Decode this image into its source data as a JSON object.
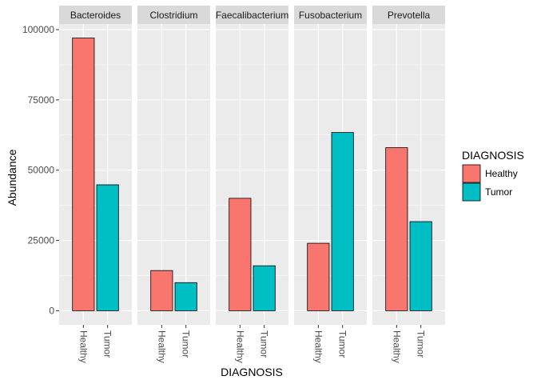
{
  "chart_data": {
    "type": "bar",
    "facets": [
      "Bacteroides",
      "Clostridium",
      "Faecalibacterium",
      "Fusobacterium",
      "Prevotella"
    ],
    "categories": [
      "Healthy",
      "Tumor"
    ],
    "values": {
      "Bacteroides": [
        97000,
        44800
      ],
      "Clostridium": [
        14300,
        10000
      ],
      "Faecalibacterium": [
        40000,
        16000
      ],
      "Fusobacterium": [
        24000,
        63400
      ],
      "Prevotella": [
        58000,
        31700
      ]
    },
    "xlabel": "DIAGNOSIS",
    "ylabel": "Abundance",
    "ylim": [
      -5000,
      102000
    ],
    "yticks": [
      0,
      25000,
      50000,
      75000,
      100000
    ],
    "ytick_labels": [
      "0",
      "25000",
      "50000",
      "75000",
      "100000"
    ],
    "legend": {
      "title": "DIAGNOSIS",
      "position": "right",
      "entries": [
        {
          "label": "Healthy",
          "color": "#F8766D"
        },
        {
          "label": "Tumor",
          "color": "#00BFC4"
        }
      ]
    },
    "grid": true,
    "colors": {
      "Healthy": "#F8766D",
      "Tumor": "#00BFC4",
      "panel": "#EBEBEB",
      "strip": "#D9D9D9"
    }
  }
}
